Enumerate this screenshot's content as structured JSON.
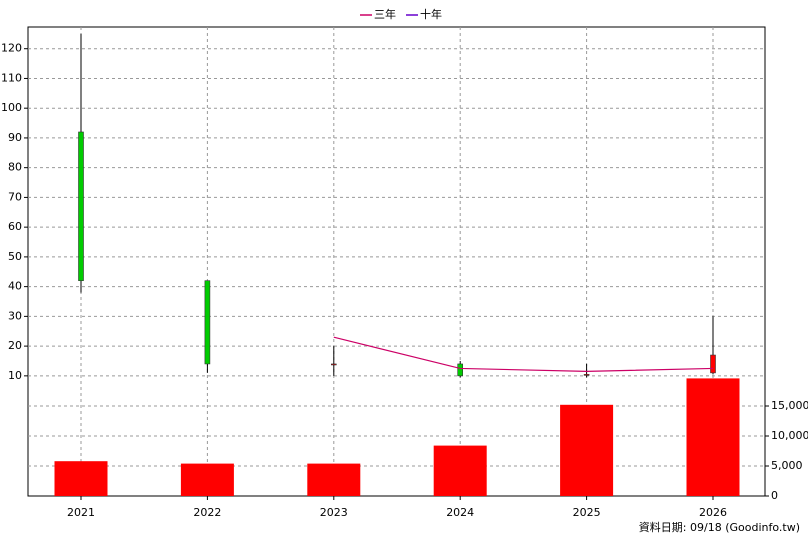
{
  "chart_data": {
    "type": "candlestick",
    "categories": [
      "2021",
      "2022",
      "2023",
      "2024",
      "2025",
      "2026"
    ],
    "open": [
      92,
      42,
      14,
      14,
      10.5,
      11
    ],
    "high": [
      125,
      42,
      20,
      15,
      14,
      30
    ],
    "low": [
      38,
      11,
      10,
      9.5,
      9.5,
      10.5
    ],
    "close": [
      42,
      14,
      14,
      10,
      10.5,
      17
    ],
    "up_color": "#ff0000",
    "down_color": "#00cc00",
    "ylim": [
      -30.4,
      127.3
    ],
    "yticks": [
      10,
      20,
      30,
      40,
      50,
      60,
      70,
      80,
      90,
      100,
      110,
      120
    ],
    "series": [
      {
        "name": "三年",
        "color": "#cc0066",
        "values": [
          null,
          null,
          23,
          12.5,
          11.5,
          12.5
        ]
      },
      {
        "name": "十年",
        "color": "#6600cc",
        "values": [
          null,
          null,
          null,
          null,
          null,
          null
        ]
      }
    ],
    "volume": {
      "color": "#ff0000",
      "axis": "y2",
      "values": [
        5800,
        5400,
        5400,
        8400,
        15200,
        19600
      ]
    },
    "y2lim": [
      0,
      78167
    ],
    "y2ticks": [
      0,
      {
        "value": 5000,
        "label": "5,000"
      },
      {
        "value": 10000,
        "label": "10,000"
      },
      {
        "value": 15000,
        "label": "15,000"
      }
    ],
    "grid": true,
    "footnote": "資料日期: 09/18  (Goodinfo.tw)"
  }
}
